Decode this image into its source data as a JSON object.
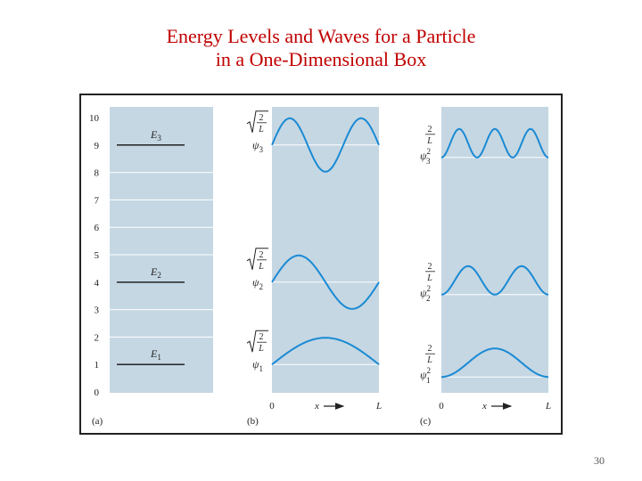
{
  "title_line1": "Energy Levels and Waves for a Particle",
  "title_line2": "in a One-Dimensional Box",
  "slide_number": "30",
  "colors": {
    "panel": "#c5d7e3",
    "curve": "#1a8ad4",
    "title": "#c00000"
  },
  "panel_a": {
    "label": "(a)",
    "y_ticks": [
      "0",
      "1",
      "2",
      "3",
      "4",
      "5",
      "6",
      "7",
      "8",
      "9",
      "10"
    ],
    "levels": [
      {
        "label": "E",
        "sub": "1",
        "value": 1
      },
      {
        "label": "E",
        "sub": "2",
        "value": 4
      },
      {
        "label": "E",
        "sub": "3",
        "value": 9
      }
    ]
  },
  "panel_b": {
    "label": "(b)",
    "amp_num": "2",
    "amp_den": "L",
    "psi": "ψ",
    "subs": [
      "1",
      "2",
      "3"
    ],
    "x0": "0",
    "xvar": "x",
    "xL": "L"
  },
  "panel_c": {
    "label": "(c)",
    "amp_num": "2",
    "amp_den": "L",
    "psi": "ψ",
    "sq": "2",
    "subs": [
      "1",
      "2",
      "3"
    ],
    "x0": "0",
    "xvar": "x",
    "xL": "L"
  }
}
